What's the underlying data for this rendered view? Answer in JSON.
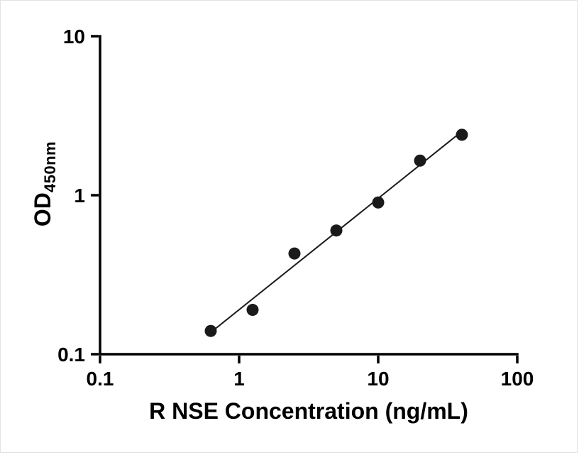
{
  "chart_data": {
    "type": "scatter",
    "title": "",
    "xlabel": "R NSE Concentration (ng/mL)",
    "ylabel_main": "OD",
    "ylabel_subscript": "450nm",
    "xscale": "log",
    "yscale": "log",
    "xlim": [
      0.1,
      100
    ],
    "ylim": [
      0.1,
      10
    ],
    "xticks": [
      0.1,
      1,
      10,
      100
    ],
    "xtick_labels": [
      "0.1",
      "1",
      "10",
      "100"
    ],
    "yticks": [
      0.1,
      1,
      10
    ],
    "ytick_labels": [
      "0.1",
      "1",
      "10"
    ],
    "grid": false,
    "legend": false,
    "x": [
      0.625,
      1.25,
      2.5,
      5,
      10,
      20,
      40
    ],
    "y": [
      0.14,
      0.19,
      0.43,
      0.6,
      0.9,
      1.65,
      2.4
    ],
    "fit_line": {
      "model": "log-log linear",
      "slope": 0.7,
      "intercept": -0.72,
      "x_start": 0.625,
      "x_end": 40
    },
    "axis_color": "#000000",
    "marker_color": "#1a1a1a",
    "line_color": "#1a1a1a",
    "background_color": "#ffffff"
  }
}
